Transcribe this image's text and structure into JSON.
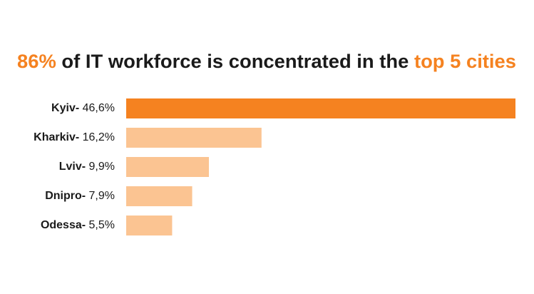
{
  "chart_data": {
    "type": "bar",
    "orientation": "horizontal",
    "title": [
      "86%",
      "of IT workforce is concentrated in the",
      "top 5 cities"
    ],
    "title_colors": [
      "#f58220",
      "#1a1a1a",
      "#f58220"
    ],
    "categories": [
      "Kyiv-",
      "Kharkiv-",
      "Lviv-",
      "Dnipro-",
      "Odessa-"
    ],
    "values": [
      46.6,
      16.2,
      9.9,
      7.9,
      5.5
    ],
    "value_labels": [
      "46,6%",
      "16,2%",
      "9,9%",
      "7,9%",
      "5,5%"
    ],
    "colors": [
      "#f58220",
      "#fbc492",
      "#fbc492",
      "#fbc492",
      "#fbc492"
    ]
  }
}
